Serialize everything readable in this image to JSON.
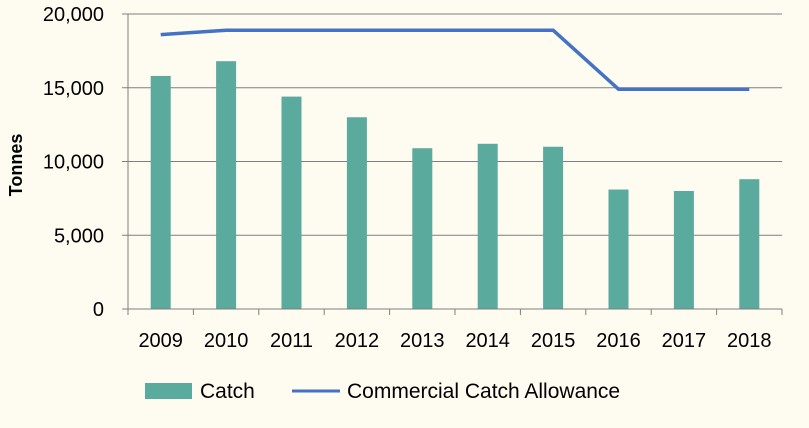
{
  "chart_data": {
    "type": "bar",
    "categories": [
      "2009",
      "2010",
      "2011",
      "2012",
      "2013",
      "2014",
      "2015",
      "2016",
      "2017",
      "2018"
    ],
    "series": [
      {
        "name": "Catch",
        "type": "bar",
        "color": "#5aaa9e",
        "values": [
          15800,
          16800,
          14400,
          13000,
          10900,
          11200,
          11000,
          8100,
          8000,
          8800
        ]
      },
      {
        "name": "Commercial Catch Allowance",
        "type": "line",
        "color": "#4472c4",
        "values": [
          18600,
          18900,
          18900,
          18900,
          18900,
          18900,
          18900,
          14900,
          14900,
          14900
        ]
      }
    ],
    "ylabel": "Tonnes",
    "ylim": [
      0,
      20000
    ],
    "yticks": [
      0,
      5000,
      10000,
      15000,
      20000
    ],
    "ytick_labels": [
      "0",
      "5,000",
      "10,000",
      "15,000",
      "20,000"
    ],
    "grid": "horizontal",
    "legend_position": "bottom"
  },
  "colors": {
    "background": "#fefbf1",
    "axis": "#7f7f7f",
    "grid": "#7f7f7f"
  }
}
